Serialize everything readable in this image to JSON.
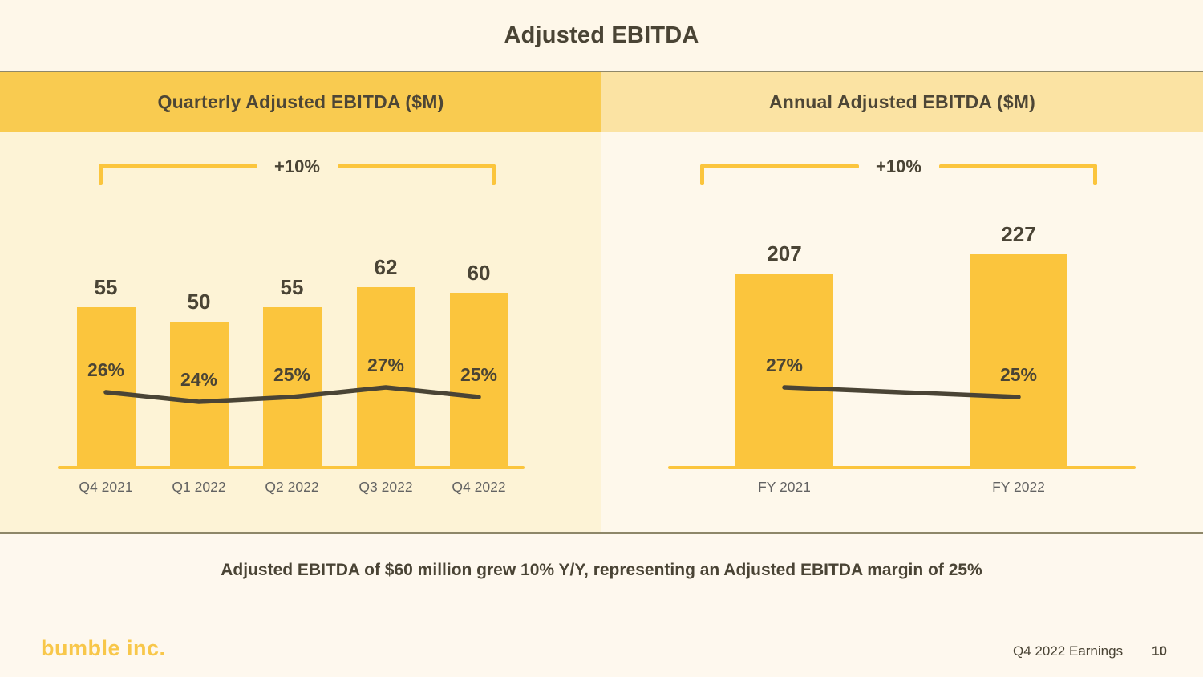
{
  "slide": {
    "title": "Adjusted EBITDA",
    "summary": "Adjusted EBITDA of $60 million grew 10% Y/Y, representing an Adjusted EBITDA margin of 25%",
    "footer": {
      "logo": "bumble inc.",
      "deck_label": "Q4 2022 Earnings",
      "page_number": "10"
    }
  },
  "colors": {
    "gold": "#FBC53D",
    "slide_bg": "#FEF7E9",
    "bottom_bg": "#FEF8EE",
    "header_left_bg": "#F9CB50",
    "header_right_bg": "#FBE3A3",
    "panel_left_bg": "#FDF3D6",
    "panel_right_bg": "#FEF8EB",
    "ink": "#4A4435",
    "axis_label": "#636363",
    "divider": "#8E8769",
    "logo": "#F8C74A"
  },
  "chart_data": [
    {
      "type": "bar",
      "title": "Quarterly Adjusted EBITDA ($M)",
      "growth_label": "+10%",
      "categories": [
        "Q4 2021",
        "Q1 2022",
        "Q2 2022",
        "Q3 2022",
        "Q4 2022"
      ],
      "series": [
        {
          "name": "Adjusted EBITDA ($M)",
          "type": "bar",
          "values": [
            55,
            50,
            55,
            62,
            60
          ]
        },
        {
          "name": "Adjusted EBITDA margin",
          "type": "line",
          "values": [
            26,
            24,
            25,
            27,
            25
          ],
          "labels": [
            "26%",
            "24%",
            "25%",
            "27%",
            "25%"
          ]
        }
      ],
      "ylim": [
        0,
        70
      ],
      "grid": false,
      "legend": "none"
    },
    {
      "type": "bar",
      "title": "Annual Adjusted EBITDA ($M)",
      "growth_label": "+10%",
      "categories": [
        "FY 2021",
        "FY 2022"
      ],
      "series": [
        {
          "name": "Adjusted EBITDA ($M)",
          "type": "bar",
          "values": [
            207,
            227
          ]
        },
        {
          "name": "Adjusted EBITDA margin",
          "type": "line",
          "values": [
            27,
            25
          ],
          "labels": [
            "27%",
            "25%"
          ]
        }
      ],
      "ylim": [
        0,
        260
      ],
      "grid": false,
      "legend": "none"
    }
  ]
}
